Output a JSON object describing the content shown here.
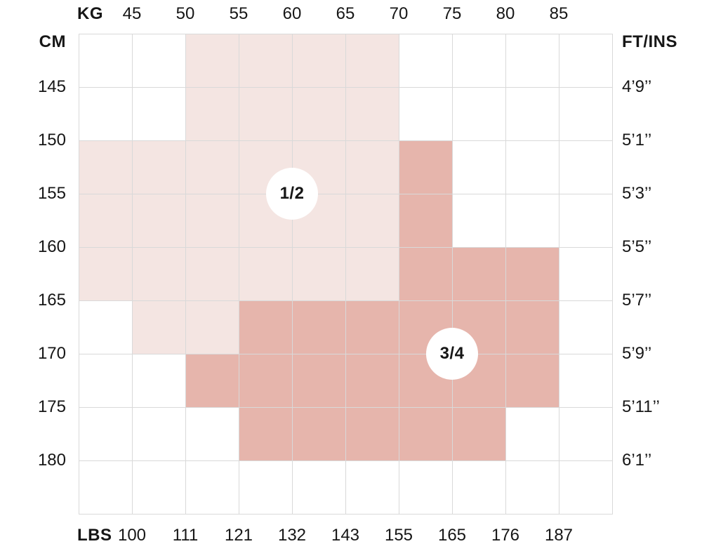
{
  "page": {
    "background": "#ffffff"
  },
  "colors": {
    "text": "#161616",
    "grid_line": "#d9d9d9",
    "badge_background": "#ffffff",
    "size_1_2_fill": "#f4e5e2",
    "size_3_4_fill": "#e6b5ac"
  },
  "chart_data": {
    "type": "heatmap",
    "title": "",
    "description": "Clothing size chart grid mapping body weight (KG top axis, LBS bottom axis) and body height (CM left axis, FT/INS right axis) to size regions 1/2 and 3/4",
    "axes": {
      "top": {
        "unit": "KG",
        "ticks": [
          "45",
          "50",
          "55",
          "60",
          "65",
          "70",
          "75",
          "80",
          "85"
        ]
      },
      "bottom": {
        "unit": "LBS",
        "ticks": [
          "100",
          "111",
          "121",
          "132",
          "143",
          "155",
          "165",
          "176",
          "187"
        ]
      },
      "left": {
        "unit": "CM",
        "ticks": [
          "145",
          "150",
          "155",
          "160",
          "165",
          "170",
          "175",
          "180"
        ]
      },
      "right": {
        "unit": "FT/INS",
        "ticks": [
          "4’9’’",
          "5’1’’",
          "5’3’’",
          "5’5’’",
          "5’7’’",
          "5’9’’",
          "5’11’’",
          "6’1’’"
        ]
      }
    },
    "grid": {
      "cols": 10,
      "rows": 9
    },
    "regions": [
      {
        "label": "1/2",
        "color": "#f4e5e2",
        "badge": {
          "col": 4,
          "row": 3
        },
        "cells_rects": [
          [
            2,
            0,
            6,
            2
          ],
          [
            0,
            2,
            6,
            5
          ],
          [
            1,
            5,
            3,
            6
          ]
        ]
      },
      {
        "label": "3/4",
        "color": "#e6b5ac",
        "badge": {
          "col": 7,
          "row": 6
        },
        "cells_rects": [
          [
            6,
            2,
            7,
            4
          ],
          [
            6,
            4,
            9,
            5
          ],
          [
            3,
            5,
            9,
            6
          ],
          [
            2,
            6,
            9,
            7
          ],
          [
            3,
            7,
            8,
            8
          ]
        ]
      }
    ]
  }
}
